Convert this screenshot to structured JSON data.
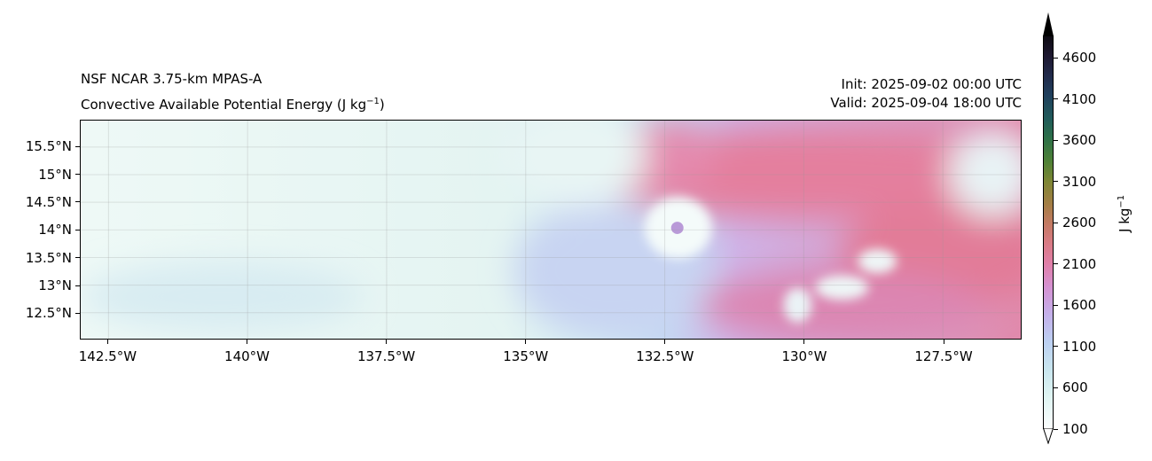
{
  "title_left_line1": "NSF NCAR 3.75-km MPAS-A",
  "title_left_line2": "Convective Available Potential Energy (J kg",
  "title_left_sup": "−1",
  "title_left_close": ")",
  "init": "Init: 2025-09-02 00:00 UTC",
  "valid": "Valid: 2025-09-04 18:00 UTC",
  "chart_data": {
    "type": "heatmap",
    "variable": "Convective Available Potential Energy",
    "x_range_lon": [
      -143.0,
      -126.1
    ],
    "y_range_lat": [
      12.03,
      15.98
    ],
    "x_ticks": [
      {
        "value": -142.5,
        "label": "142.5°W"
      },
      {
        "value": -140.0,
        "label": "140°W"
      },
      {
        "value": -137.5,
        "label": "137.5°W"
      },
      {
        "value": -135.0,
        "label": "135°W"
      },
      {
        "value": -132.5,
        "label": "132.5°W"
      },
      {
        "value": -130.0,
        "label": "130°W"
      },
      {
        "value": -127.5,
        "label": "127.5°W"
      }
    ],
    "y_ticks": [
      {
        "value": 15.5,
        "label": "15.5°N"
      },
      {
        "value": 15.0,
        "label": "15°N"
      },
      {
        "value": 14.5,
        "label": "14.5°N"
      },
      {
        "value": 14.0,
        "label": "14°N"
      },
      {
        "value": 13.5,
        "label": "13.5°N"
      },
      {
        "value": 13.0,
        "label": "13°N"
      },
      {
        "value": 12.5,
        "label": "12.5°N"
      }
    ],
    "grid": true,
    "storm_center": {
      "lon": -132.3,
      "lat": 14.05
    },
    "colorbar": {
      "label": "J kg",
      "label_sup": "−1",
      "range": [
        100,
        4870
      ],
      "extend": "both",
      "ticks": [
        100,
        600,
        1100,
        1600,
        2100,
        2600,
        3100,
        3600,
        4100,
        4600
      ]
    }
  }
}
